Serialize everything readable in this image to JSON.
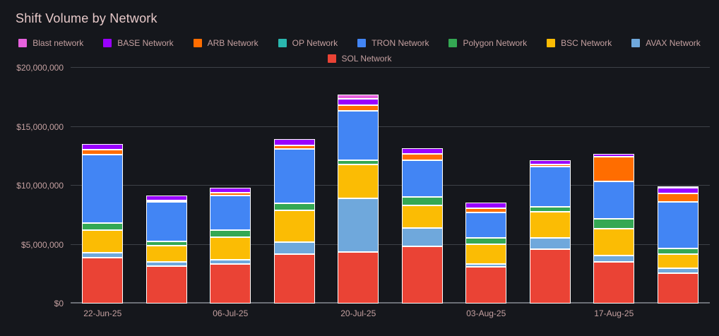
{
  "title": "Shift Volume by Network",
  "chart_data": {
    "type": "bar",
    "variant": "stacked",
    "unit": "USD",
    "ylim": [
      0,
      20000000
    ],
    "grid": true,
    "y_tick_values": [
      0,
      5000000,
      10000000,
      15000000,
      20000000
    ],
    "y_tick_labels": [
      "$0",
      "$5,000,000",
      "$10,000,000",
      "$15,000,000",
      "$20,000,000"
    ],
    "n_bars": 10,
    "x_tick_labels": [
      "22-Jun-25",
      "06-Jul-25",
      "20-Jul-25",
      "03-Aug-25",
      "17-Aug-25"
    ],
    "x_tick_positions": [
      0,
      2,
      4,
      6,
      8
    ],
    "legend_position": "top-center",
    "legend": [
      {
        "label": "Blast network",
        "color": "#e661dd"
      },
      {
        "label": "BASE Network",
        "color": "#9900ff"
      },
      {
        "label": "ARB Network",
        "color": "#ff6d00"
      },
      {
        "label": "OP Network",
        "color": "#2ab7af"
      },
      {
        "label": "TRON Network",
        "color": "#4285f4"
      },
      {
        "label": "Polygon Network",
        "color": "#34a853"
      },
      {
        "label": "BSC Network",
        "color": "#fbbc04"
      },
      {
        "label": "AVAX Network",
        "color": "#6fa8dc"
      },
      {
        "label": "SOL Network",
        "color": "#ea4335"
      }
    ],
    "series_bottom_to_top": [
      {
        "name": "SOL Network",
        "color": "#ea4335",
        "values": [
          3900000,
          3200000,
          3350000,
          4200000,
          4400000,
          4850000,
          3100000,
          4600000,
          3550000,
          2550000
        ]
      },
      {
        "name": "AVAX Network",
        "color": "#6fa8dc",
        "values": [
          400000,
          350000,
          350000,
          1000000,
          4550000,
          1550000,
          250000,
          950000,
          550000,
          450000
        ]
      },
      {
        "name": "BSC Network",
        "color": "#fbbc04",
        "values": [
          1950000,
          1350000,
          1950000,
          2700000,
          2850000,
          1950000,
          1700000,
          2250000,
          2250000,
          1200000
        ]
      },
      {
        "name": "Polygon Network",
        "color": "#34a853",
        "values": [
          600000,
          400000,
          550000,
          600000,
          350000,
          700000,
          550000,
          400000,
          850000,
          450000
        ]
      },
      {
        "name": "TRON Network",
        "color": "#4285f4",
        "values": [
          5800000,
          3300000,
          2950000,
          4600000,
          4200000,
          3100000,
          2100000,
          3400000,
          3150000,
          4000000
        ]
      },
      {
        "name": "OP Network",
        "color": "#2ab7af",
        "values": [
          0,
          0,
          0,
          0,
          0,
          0,
          0,
          0,
          0,
          0
        ]
      },
      {
        "name": "ARB Network",
        "color": "#ff6d00",
        "values": [
          400000,
          100000,
          250000,
          300000,
          450000,
          550000,
          400000,
          200000,
          2100000,
          700000
        ]
      },
      {
        "name": "BASE Network",
        "color": "#9900ff",
        "values": [
          500000,
          450000,
          450000,
          550000,
          550000,
          500000,
          450000,
          350000,
          250000,
          450000
        ]
      },
      {
        "name": "Blast network",
        "color": "#e661dd",
        "values": [
          0,
          0,
          0,
          0,
          350000,
          0,
          0,
          0,
          0,
          100000
        ]
      }
    ]
  }
}
